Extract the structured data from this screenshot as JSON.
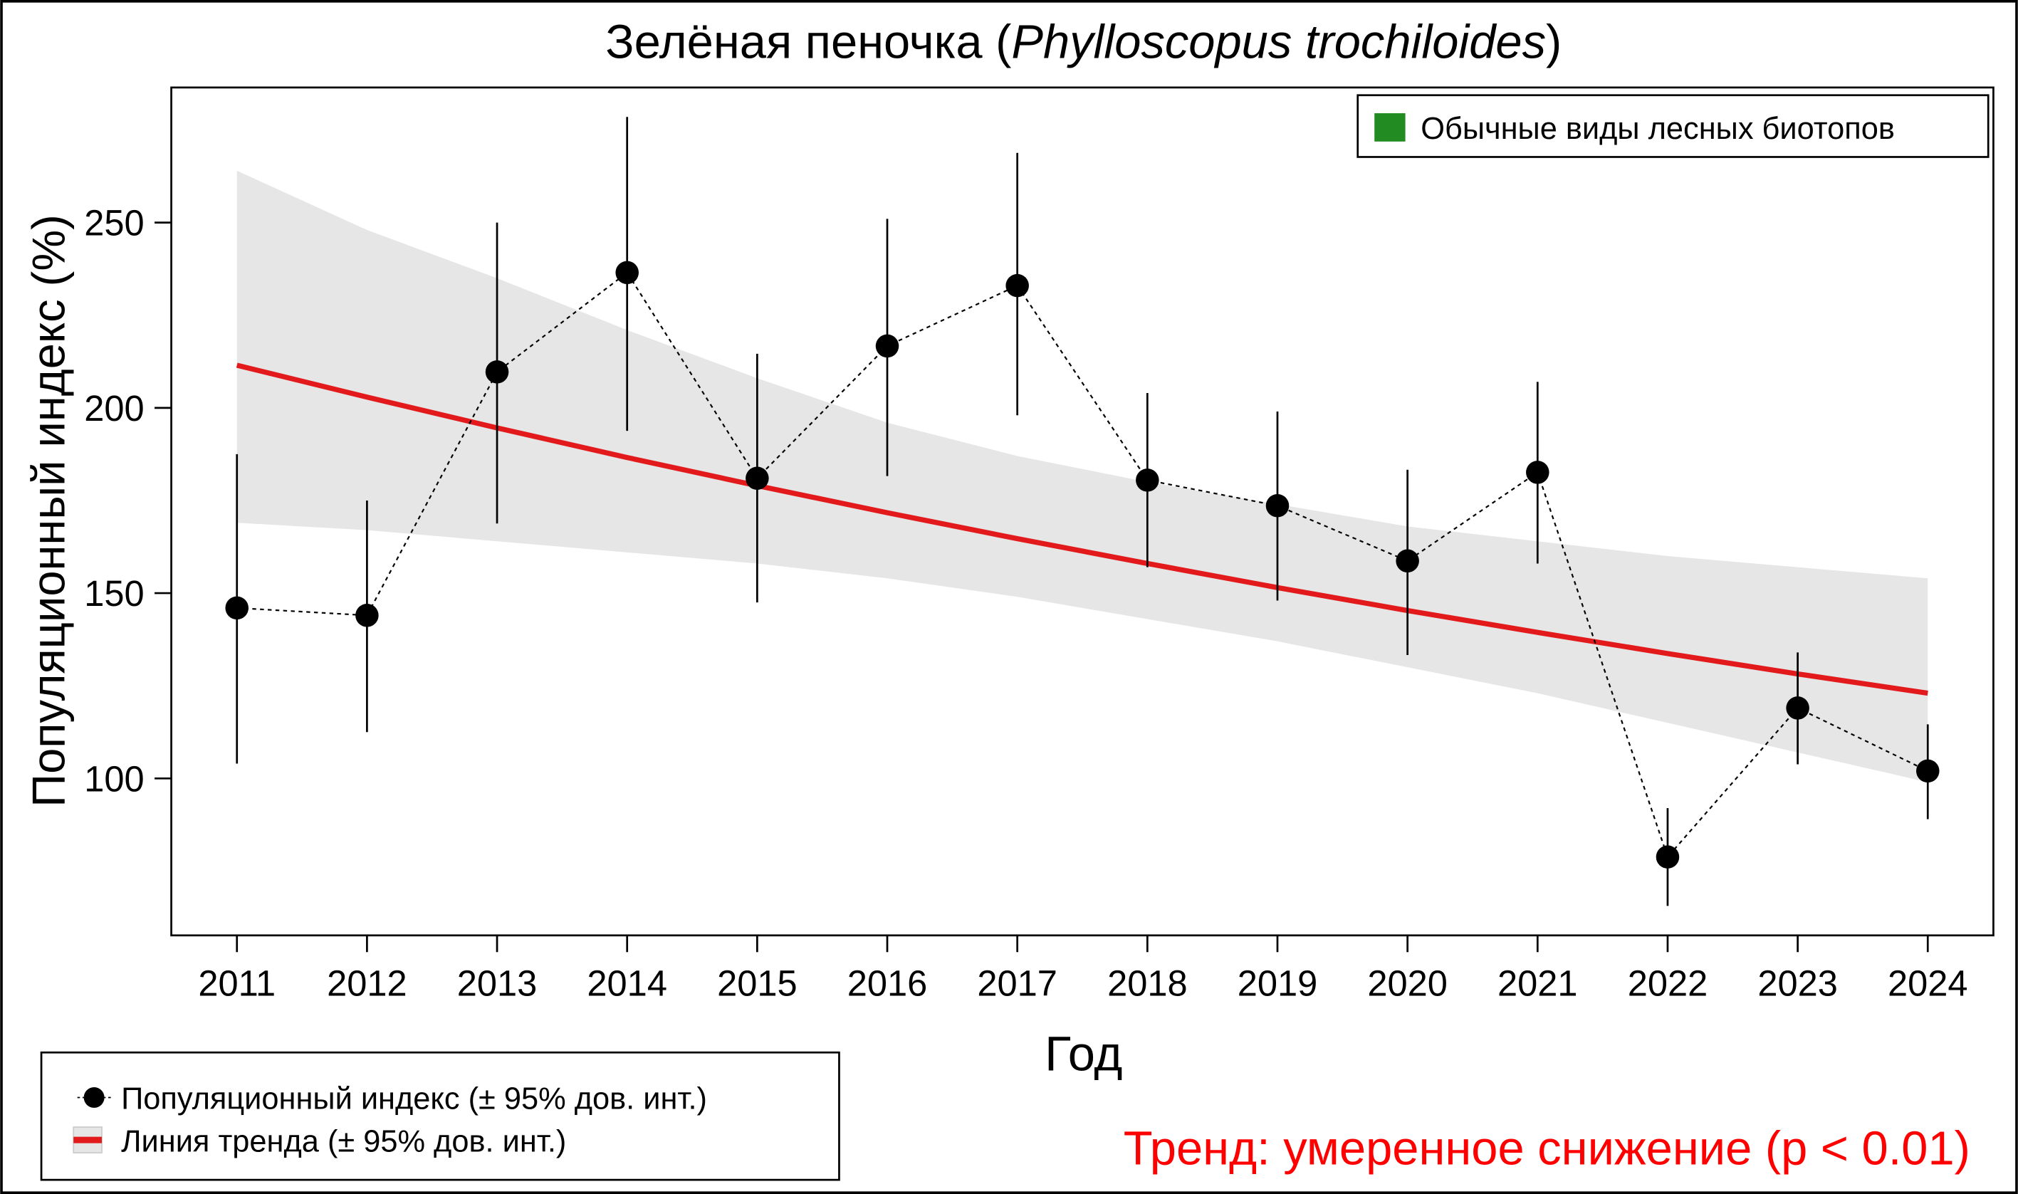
{
  "chart_data": {
    "type": "line",
    "title_prefix": "Зелёная пеночка (",
    "title_italic": "Phylloscopus trochiloides",
    "title_suffix": ")",
    "xlabel": "Год",
    "ylabel": "Популяционный индекс (%)",
    "x": [
      2011,
      2012,
      2013,
      2014,
      2015,
      2016,
      2017,
      2018,
      2019,
      2020,
      2021,
      2022,
      2023,
      2024
    ],
    "ylim": [
      57.6,
      286.5
    ],
    "yticks": [
      100,
      150,
      200,
      250
    ],
    "series": [
      {
        "name": "Популяционный индекс (± 95% дов. инт.)",
        "values": [
          146,
          144,
          209.7,
          236.5,
          181,
          216.7,
          233,
          180.5,
          173.6,
          158.7,
          182.6,
          78.8,
          119,
          102
        ],
        "ci_lower": [
          104,
          112.5,
          168.8,
          193.8,
          147.5,
          181.6,
          198,
          157,
          148,
          133.3,
          158,
          65.6,
          103.8,
          89
        ],
        "ci_upper": [
          187.5,
          175,
          250,
          278.5,
          214.6,
          251,
          268.8,
          204,
          199,
          183.3,
          207,
          92,
          134,
          114.6
        ]
      },
      {
        "name": "Линия тренда (± 95% дов. инт.)",
        "values": [
          211.5,
          202.9,
          194.6,
          186.6,
          179.0,
          171.7,
          164.7,
          158.0,
          151.5,
          145.3,
          139.4,
          133.7,
          128.2,
          123
        ],
        "band_lower": [
          169,
          167,
          164,
          161,
          158,
          154,
          149,
          143,
          137,
          130,
          123,
          115,
          107,
          99
        ],
        "band_upper": [
          264,
          248,
          235,
          221,
          208,
          196,
          187,
          180,
          174,
          168,
          164,
          160,
          157,
          154
        ]
      }
    ],
    "group_legend": {
      "label": "Обычные виды лесных биотопов",
      "color": "#228b22"
    },
    "trend_text": "Тренд: умеренное снижение (p < 0.01)",
    "colors": {
      "trend": "#e31a1c",
      "band": "#e6e6e6",
      "points": "#000000",
      "trend_text": "#ff0000"
    }
  }
}
